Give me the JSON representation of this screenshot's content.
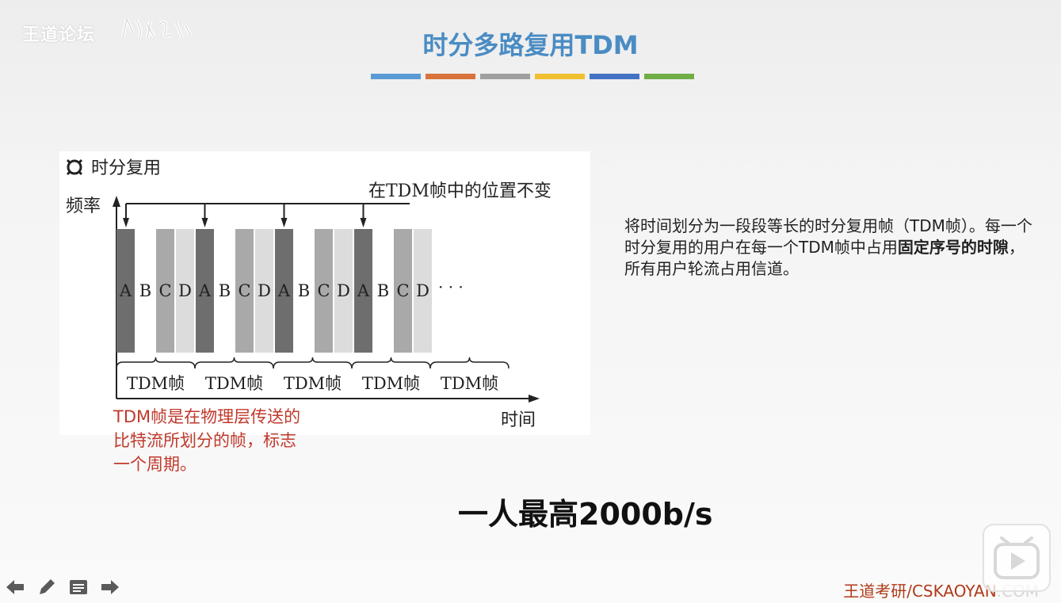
{
  "watermark": {
    "text": "王道论坛"
  },
  "slide": {
    "title": "时分多路复用TDM",
    "bar_colors": [
      "#5b9bd5",
      "#d9733b",
      "#a0a0a0",
      "#f0c030",
      "#4472c4",
      "#70ad47"
    ]
  },
  "figure": {
    "heading": "时分复用",
    "y_label": "频率",
    "x_label": "时间",
    "annotation": "在TDM帧中的位置不变",
    "slots": [
      "A",
      "B",
      "C",
      "D",
      "A",
      "B",
      "C",
      "D",
      "A",
      "B",
      "C",
      "D",
      "A",
      "B",
      "C",
      "D"
    ],
    "ellipsis": "· · ·",
    "frames": [
      "TDM帧",
      "TDM帧",
      "TDM帧",
      "TDM帧",
      "TDM帧"
    ]
  },
  "description": {
    "part1": "将时间划分为一段段等长的时分复用帧（TDM帧）。每一个时分复用的用户在每一个TDM帧中占用",
    "bold": "固定序号的时隙",
    "part2": "，所有用户轮流占用信道。"
  },
  "note": {
    "text": "TDM帧是在物理层传送的比特流所划分的帧，标志一个周期。"
  },
  "emphasis": {
    "text": "一人最高2000b/s"
  },
  "footer": {
    "brand_main": "王道考研/CSKAOYAN",
    "brand_tail": ".COM"
  },
  "toolbar": {
    "icons": [
      "arrow-left-icon",
      "pencil-icon",
      "menu-icon",
      "arrow-right-icon"
    ]
  }
}
